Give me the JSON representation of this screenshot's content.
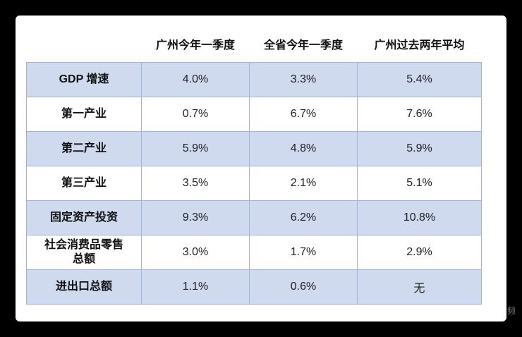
{
  "table": {
    "header": [
      "广州今年一季度",
      "全省今年一季度",
      "广州过去两年平均"
    ],
    "rows": [
      [
        "GDP 增速",
        "4.0%",
        "3.3%",
        "5.4%"
      ],
      [
        "第一产业",
        "0.7%",
        "6.7%",
        "7.6%"
      ],
      [
        "第二产业",
        "5.9%",
        "4.8%",
        "5.9%"
      ],
      [
        "第三产业",
        "3.5%",
        "2.1%",
        "5.1%"
      ],
      [
        "固定资产投资",
        "9.3%",
        "6.2%",
        "10.8%"
      ],
      [
        "社会消费品零售总额",
        "3.0%",
        "1.7%",
        "2.9%"
      ],
      [
        "进出口总额",
        "1.1%",
        "0.6%",
        "无"
      ]
    ]
  },
  "watermark": "频"
}
